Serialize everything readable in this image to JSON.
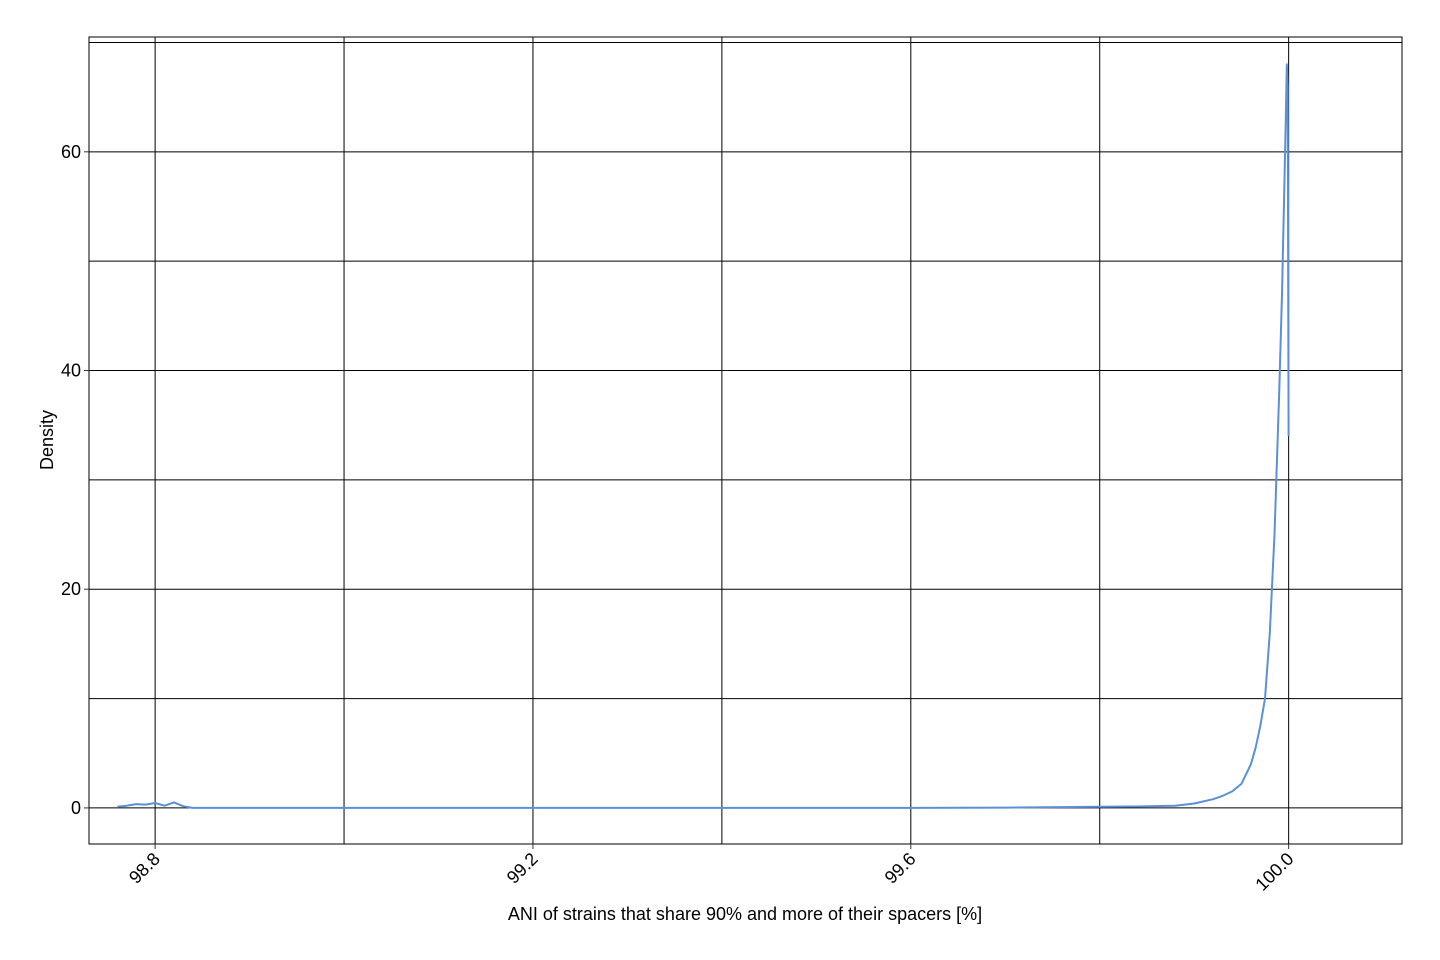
{
  "chart_data": {
    "type": "line",
    "title": "",
    "xlabel": "ANI of strains that share 90% and more of their spacers [%]",
    "ylabel": "Density",
    "xlim": [
      98.73,
      100.12
    ],
    "ylim": [
      -3.3,
      70.5
    ],
    "grid": true,
    "grid_color": "#000000",
    "line_color": "#5b8fd6",
    "x_major_ticks": [
      98.8,
      99.2,
      99.6,
      100.0
    ],
    "x_tick_labels": [
      "98.8",
      "99.2",
      "99.6",
      "100.0"
    ],
    "x_minor_ticks": [
      99.0,
      99.4,
      99.8
    ],
    "y_major_ticks": [
      0,
      20,
      40,
      60
    ],
    "y_tick_labels": [
      "0",
      "20",
      "40",
      "60"
    ],
    "y_minor_ticks": [
      10,
      30,
      50,
      70
    ],
    "series": [
      {
        "x": [
          98.76,
          98.77,
          98.78,
          98.79,
          98.8,
          98.81,
          98.82,
          98.83,
          98.84,
          99.0,
          99.2,
          99.4,
          99.6,
          99.7,
          99.8,
          99.85,
          99.88,
          99.9,
          99.92,
          99.93,
          99.94,
          99.95,
          99.96,
          99.965,
          99.97,
          99.975,
          99.98,
          99.985,
          99.99,
          99.993,
          99.995,
          99.997,
          99.998,
          99.999,
          100.0
        ],
        "y": [
          0.1,
          0.2,
          0.35,
          0.3,
          0.45,
          0.2,
          0.5,
          0.15,
          0.0,
          0.0,
          0.0,
          0.0,
          0.0,
          0.03,
          0.1,
          0.15,
          0.2,
          0.4,
          0.8,
          1.1,
          1.5,
          2.2,
          4.0,
          5.5,
          7.5,
          10.0,
          16.0,
          25.0,
          38.0,
          47.0,
          55.0,
          63.0,
          68.0,
          66.0,
          34.0
        ]
      }
    ]
  }
}
